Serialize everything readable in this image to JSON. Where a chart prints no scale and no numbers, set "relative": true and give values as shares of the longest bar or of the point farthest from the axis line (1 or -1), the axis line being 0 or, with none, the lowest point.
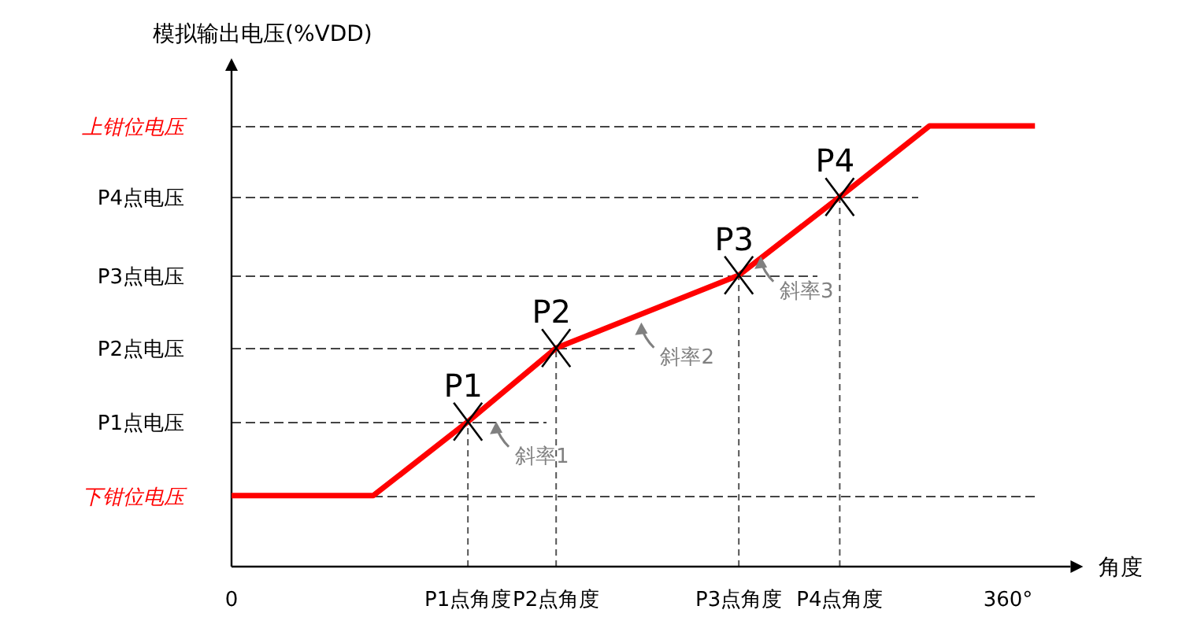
{
  "chart_data": {
    "type": "line",
    "relative": true,
    "ylabel": "模拟输出电压(%VDD)",
    "xlabel": "角度",
    "xlim": [
      0,
      389
    ],
    "xticks": [
      0,
      {
        "value": 109.6,
        "label": "P1点角度"
      },
      {
        "value": 150.5,
        "label": "P2点角度"
      },
      {
        "value": 235.2,
        "label": "P3点角度"
      },
      {
        "value": 282,
        "label": "P4点角度"
      },
      {
        "value": 360,
        "label": "360°"
      }
    ],
    "series": [
      {
        "color": "#ff0000",
        "x": [
          0,
          65.7,
          109.6,
          150.5,
          235.2,
          282,
          323.6,
          372.5
        ],
        "values": [
          0.161,
          0.161,
          0.329,
          0.496,
          0.661,
          0.839,
          1,
          1
        ]
      },
      {
        "type": "scatter",
        "marker": "cross",
        "color": "#000000",
        "x": [
          109.6,
          150.5,
          235.2,
          282
        ],
        "values": [
          0.329,
          0.496,
          0.661,
          0.839
        ]
      }
    ],
    "ref_lines": [
      {
        "axis": "y",
        "value": 1,
        "label": "上钳位电压"
      },
      {
        "axis": "y",
        "value": 0.839,
        "label": "P4点电压"
      },
      {
        "axis": "y",
        "value": 0.661,
        "label": "P3点电压"
      },
      {
        "axis": "y",
        "value": 0.496,
        "label": "P2点电压"
      },
      {
        "axis": "y",
        "value": 0.329,
        "label": "P1点电压"
      },
      {
        "axis": "y",
        "value": 0.161,
        "label": "下钳位电压"
      }
    ],
    "annotations": [
      {
        "text": "P1",
        "x": 109.6,
        "y": 0.329
      },
      {
        "text": "P2",
        "x": 150.5,
        "y": 0.496
      },
      {
        "text": "P3",
        "x": 235.2,
        "y": 0.661
      },
      {
        "text": "P4",
        "x": 282,
        "y": 0.839
      },
      {
        "text": "斜率1",
        "x": 122.7,
        "y": 0.329
      },
      {
        "text": "斜率2",
        "x": 190,
        "y": 0.554
      },
      {
        "text": "斜率3",
        "x": 245.4,
        "y": 0.704
      }
    ]
  }
}
